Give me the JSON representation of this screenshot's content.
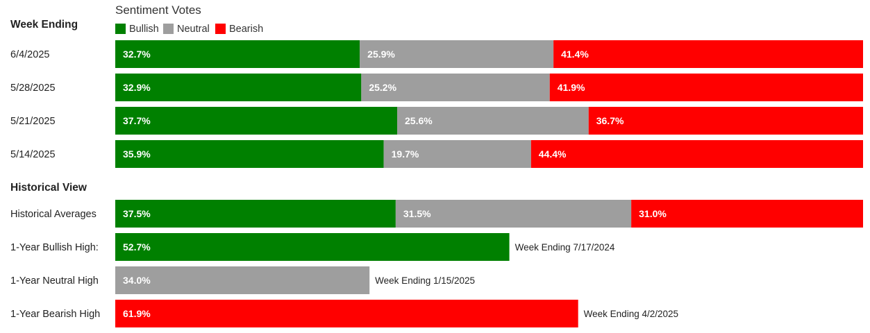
{
  "chart_data": {
    "type": "bar",
    "orientation": "horizontal",
    "stacked": true,
    "legend_title": "Sentiment Votes",
    "legend_placement": "top-left",
    "series": [
      {
        "name": "Bullish",
        "color": "#008000"
      },
      {
        "name": "Neutral",
        "color": "#9e9e9e"
      },
      {
        "name": "Bearish",
        "color": "#ff0000"
      }
    ],
    "weekly": {
      "heading": "Week Ending",
      "rows": [
        {
          "label": "6/4/2025",
          "values": [
            32.7,
            25.9,
            41.4
          ],
          "value_labels": [
            "32.7%",
            "25.9%",
            "41.4%"
          ]
        },
        {
          "label": "5/28/2025",
          "values": [
            32.9,
            25.2,
            41.9
          ],
          "value_labels": [
            "32.9%",
            "25.2%",
            "41.9%"
          ]
        },
        {
          "label": "5/21/2025",
          "values": [
            37.7,
            25.6,
            36.7
          ],
          "value_labels": [
            "37.7%",
            "25.6%",
            "36.7%"
          ]
        },
        {
          "label": "5/14/2025",
          "values": [
            35.9,
            19.7,
            44.4
          ],
          "value_labels": [
            "35.9%",
            "19.7%",
            "44.4%"
          ]
        }
      ]
    },
    "historical": {
      "heading": "Historical View",
      "averages": {
        "label": "Historical Averages",
        "values": [
          37.5,
          31.5,
          31.0
        ],
        "value_labels": [
          "37.5%",
          "31.5%",
          "31.0%"
        ]
      },
      "highs": [
        {
          "label": "1-Year Bullish High:",
          "series": 0,
          "value": 52.7,
          "value_label": "52.7%",
          "note": "Week Ending 7/17/2024"
        },
        {
          "label": "1-Year Neutral High",
          "series": 1,
          "value": 34.0,
          "value_label": "34.0%",
          "note": "Week Ending 1/15/2025"
        },
        {
          "label": "1-Year Bearish High",
          "series": 2,
          "value": 61.9,
          "value_label": "61.9%",
          "note": "Week Ending 4/2/2025"
        }
      ]
    },
    "xlim": [
      0,
      100
    ]
  }
}
